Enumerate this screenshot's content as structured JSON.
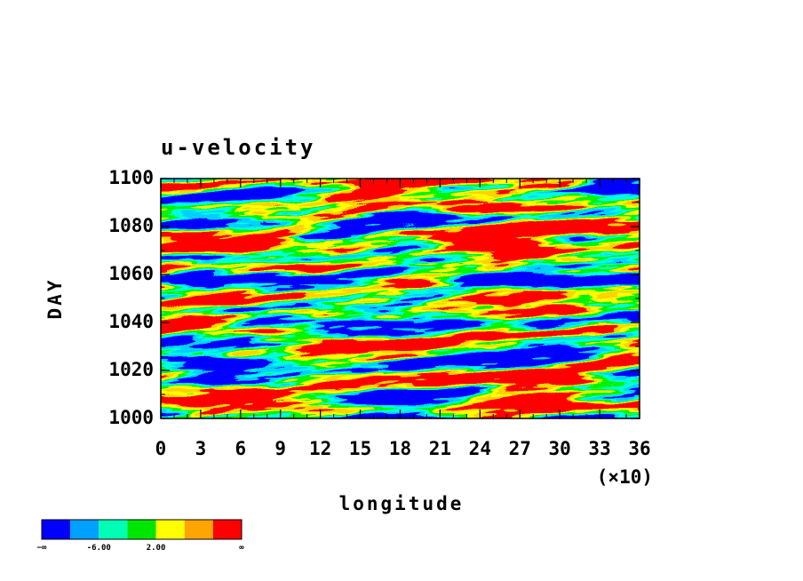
{
  "chart_data": {
    "type": "heatmap",
    "title": "u-velocity",
    "x_label": "longitude",
    "x_multiplier": "(×10)",
    "y_label": "DAY",
    "xlim": [
      0,
      36
    ],
    "xticks": [
      0,
      3,
      6,
      9,
      12,
      15,
      18,
      21,
      24,
      27,
      30,
      33,
      36
    ],
    "ylim": [
      1000,
      1100
    ],
    "yticks": [
      1000,
      1020,
      1040,
      1060,
      1080,
      1100
    ],
    "colorbar": {
      "colors": [
        "#0000ff",
        "#00a0ff",
        "#00ffb4",
        "#00e600",
        "#ffff00",
        "#ffa500",
        "#ff0000"
      ],
      "labels": [
        "−∞",
        "-6.00",
        "2.00",
        "∞"
      ]
    }
  }
}
